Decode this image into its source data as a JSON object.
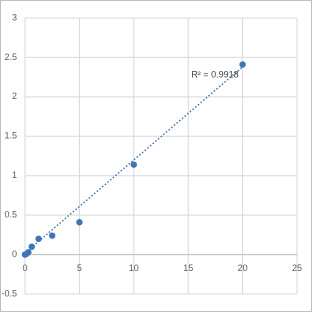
{
  "chart_data": {
    "type": "scatter",
    "x": [
      0,
      0.156,
      0.312,
      0.625,
      1.25,
      2.5,
      5,
      10,
      20
    ],
    "values": [
      0.0,
      0.01,
      0.03,
      0.1,
      0.2,
      0.24,
      0.41,
      1.14,
      2.41
    ],
    "color": "#3f74b5",
    "trendline": {
      "x": [
        0,
        20
      ],
      "values": [
        0.02,
        2.38
      ],
      "color": "#3f74b5",
      "label": "R² = 0.9918"
    },
    "xlim": [
      0,
      25
    ],
    "xticks": [
      0,
      5,
      10,
      15,
      20,
      25
    ],
    "ylim": [
      -0.5,
      3
    ],
    "yticks": [
      -0.5,
      0,
      0.5,
      1,
      1.5,
      2,
      2.5,
      3
    ],
    "grid": true
  }
}
